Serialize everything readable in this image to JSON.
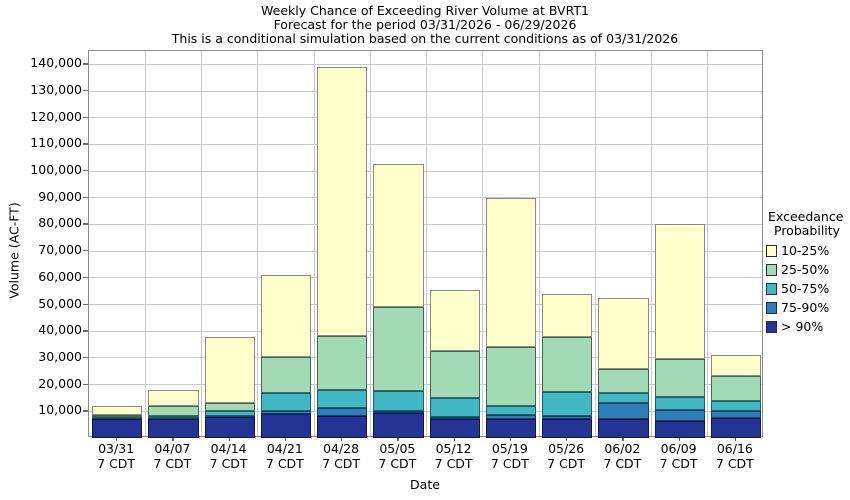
{
  "header": {
    "title_line1": "Weekly Chance of Exceeding River Volume at BVRT1",
    "title_line2": "Forecast for the period 03/31/2026 - 06/29/2026",
    "title_line3": "This is a conditional simulation based on the current conditions as of 03/31/2026"
  },
  "axes": {
    "ylabel": "Volume (AC-FT)",
    "xlabel": "Date",
    "ytick_labels": [
      "10,000",
      "20,000",
      "30,000",
      "40,000",
      "50,000",
      "60,000",
      "70,000",
      "80,000",
      "90,000",
      "100,000",
      "110,000",
      "120,000",
      "130,000",
      "140,000"
    ],
    "ytick_values": [
      10000,
      20000,
      30000,
      40000,
      50000,
      60000,
      70000,
      80000,
      90000,
      100000,
      110000,
      120000,
      130000,
      140000
    ],
    "xtick_sublabel": "7 CDT"
  },
  "legend": {
    "title_line1": "Exceedance",
    "title_line2": "Probability",
    "items": [
      {
        "label": "10-25%",
        "color": "#FFFFCC"
      },
      {
        "label": "25-50%",
        "color": "#A1DAB4"
      },
      {
        "label": "50-75%",
        "color": "#41B6C4"
      },
      {
        "label": "75-90%",
        "color": "#2C7FB8"
      },
      {
        "label": "> 90%",
        "color": "#253494"
      }
    ]
  },
  "chart_data": {
    "type": "bar",
    "variant": "stacked-exceedance",
    "title": "Weekly Chance of Exceeding River Volume at BVRT1",
    "xlabel": "Date",
    "ylabel": "Volume (AC-FT)",
    "ylim": [
      0,
      145000
    ],
    "grid": true,
    "legend_position": "right",
    "categories": [
      "03/31",
      "04/07",
      "04/14",
      "04/21",
      "04/28",
      "05/05",
      "05/12",
      "05/19",
      "05/26",
      "06/02",
      "06/09",
      "06/16"
    ],
    "category_sublabel": "7 CDT",
    "note": "cumulative_tops_acft are the stacked segment top values (AC-FT) for each week, ordered top-of-stack to bottom",
    "series": [
      {
        "name": "10-25%",
        "color": "#FFFFCC",
        "border": "#8C8C6E",
        "cumulative_tops_acft": [
          12000,
          18000,
          38000,
          61000,
          139000,
          102500,
          55500,
          90000,
          54000,
          52500,
          80000,
          31250
        ]
      },
      {
        "name": "25-50%",
        "color": "#A1DAB4",
        "border": "#44684F",
        "cumulative_tops_acft": [
          8500,
          12000,
          13250,
          30500,
          38250,
          49000,
          32500,
          34000,
          38000,
          26000,
          29500,
          23250
        ]
      },
      {
        "name": "50-75%",
        "color": "#41B6C4",
        "border": "#1D5F66",
        "cumulative_tops_acft": [
          7800,
          8100,
          10250,
          17000,
          18000,
          17600,
          15000,
          12000,
          17250,
          17000,
          15250,
          13750
        ]
      },
      {
        "name": "75-90%",
        "color": "#2C7FB8",
        "border": "#16405C",
        "cumulative_tops_acft": [
          7500,
          7500,
          8250,
          10000,
          11250,
          10000,
          7900,
          8500,
          8100,
          13000,
          10500,
          10000
        ]
      },
      {
        "name": "> 90%",
        "color": "#253494",
        "border": "#11173F",
        "cumulative_tops_acft": [
          7200,
          7100,
          7900,
          9000,
          8100,
          9250,
          7250,
          7000,
          7250,
          7250,
          6300,
          7500
        ]
      }
    ]
  }
}
